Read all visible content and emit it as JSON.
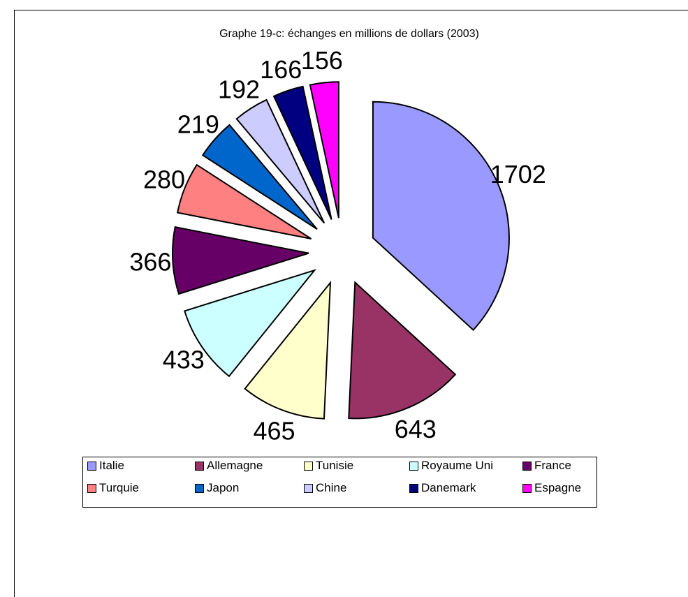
{
  "chart_data": {
    "type": "pie",
    "title": "Graphe 19-c: échanges en millions de dollars (2003)",
    "categories": [
      "Italie",
      "Allemagne",
      "Tunisie",
      "Royaume Uni",
      "France",
      "Turquie",
      "Japon",
      "Chine",
      "Danemark",
      "Espagne"
    ],
    "values": [
      1702,
      643,
      465,
      433,
      366,
      280,
      219,
      192,
      166,
      156
    ],
    "colors": [
      "#9999FF",
      "#993366",
      "#FFFFCC",
      "#CCFFFF",
      "#660066",
      "#FF8080",
      "#0066CC",
      "#CCCCFF",
      "#000080",
      "#FF00FF"
    ],
    "exploded": true,
    "legend_position": "bottom"
  }
}
